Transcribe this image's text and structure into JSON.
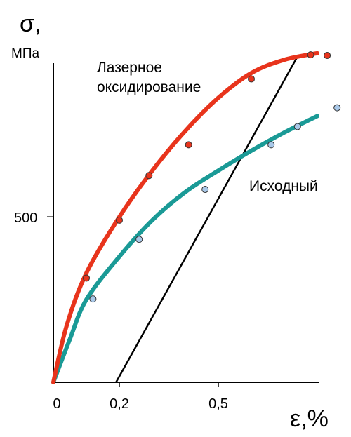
{
  "chart_data": {
    "type": "line",
    "ylabel": "σ,",
    "yunit": "МПа",
    "xlabel": "ε,%",
    "xlim": [
      0,
      0.81
    ],
    "ylim": [
      0,
      1000
    ],
    "x_ticks": [
      {
        "value": 0,
        "label": "0"
      },
      {
        "value": 0.2,
        "label": "0,2"
      },
      {
        "value": 0.5,
        "label": "0,5"
      }
    ],
    "y_ticks": [
      {
        "value": 500,
        "label": "500"
      }
    ],
    "series": [
      {
        "name": "Лазерное оксидирование",
        "name_lines": [
          "Лазерное",
          "оксидирование"
        ],
        "color": "#e8341c",
        "point_color": "#e8341c",
        "curve": [
          [
            0,
            0
          ],
          [
            0.04,
            170
          ],
          [
            0.1,
            330
          ],
          [
            0.2,
            500
          ],
          [
            0.3,
            640
          ],
          [
            0.4,
            760
          ],
          [
            0.5,
            860
          ],
          [
            0.6,
            935
          ],
          [
            0.7,
            975
          ],
          [
            0.8,
            995
          ]
        ],
        "points": [
          [
            0.1,
            315
          ],
          [
            0.2,
            490
          ],
          [
            0.29,
            625
          ],
          [
            0.41,
            718
          ],
          [
            0.6,
            917
          ],
          [
            0.78,
            990
          ],
          [
            0.83,
            988
          ]
        ]
      },
      {
        "name": "Исходный",
        "name_lines": [
          "Исходный"
        ],
        "color": "#1a9a96",
        "point_color": "#a9c8e8",
        "curve": [
          [
            0,
            0
          ],
          [
            0.05,
            130
          ],
          [
            0.1,
            250
          ],
          [
            0.2,
            380
          ],
          [
            0.3,
            490
          ],
          [
            0.4,
            575
          ],
          [
            0.5,
            640
          ],
          [
            0.6,
            700
          ],
          [
            0.7,
            755
          ],
          [
            0.8,
            805
          ]
        ],
        "points": [
          [
            0.12,
            252
          ],
          [
            0.26,
            432
          ],
          [
            0.46,
            583
          ],
          [
            0.66,
            718
          ],
          [
            0.74,
            773
          ],
          [
            0.86,
            830
          ]
        ]
      }
    ],
    "reference_line": {
      "color": "#000000",
      "points": [
        [
          0.19,
          0
        ],
        [
          0.74,
          985
        ]
      ]
    }
  }
}
